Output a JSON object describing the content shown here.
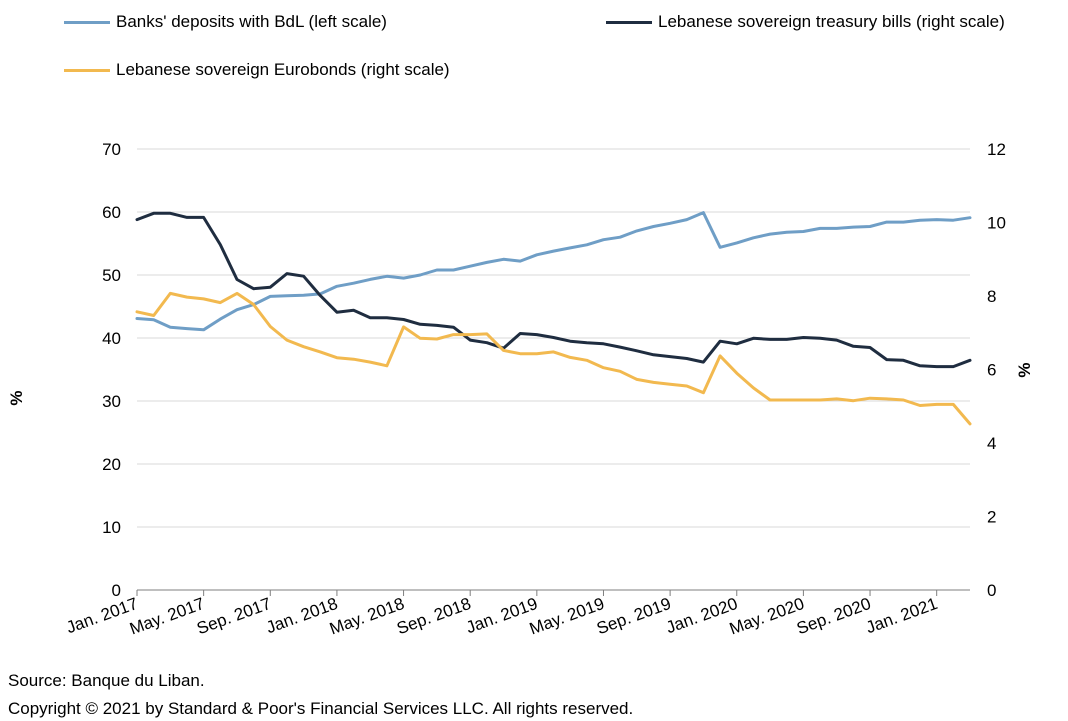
{
  "chart_data": {
    "type": "line",
    "legend_position": "top",
    "x_tick_labels": [
      "Jan. 2017",
      "May. 2017",
      "Sep. 2017",
      "Jan. 2018",
      "May. 2018",
      "Sep. 2018",
      "Jan. 2019",
      "May. 2019",
      "Sep. 2019",
      "Jan. 2020",
      "May. 2020",
      "Sep. 2020",
      "Jan. 2021"
    ],
    "x_start": "Jan. 2017",
    "x_end": "Mar. 2021",
    "ylabel_left": "%",
    "ylabel_right": "%",
    "ylim_left": [
      0,
      70
    ],
    "ylim_right": [
      0,
      12
    ],
    "yticks_left": [
      "0",
      "10",
      "20",
      "30",
      "40",
      "50",
      "60",
      "70"
    ],
    "yticks_right": [
      "0",
      "2",
      "4",
      "6",
      "8",
      "10",
      "12"
    ],
    "grid": true,
    "series": [
      {
        "name": "Banks' deposits with BdL (left scale)",
        "axis": "left",
        "color": "#6f9ec6",
        "values": [
          43.1,
          42.9,
          41.7,
          41.5,
          41.3,
          43.0,
          44.5,
          45.3,
          46.6,
          46.7,
          46.8,
          47.0,
          48.2,
          48.7,
          49.3,
          49.8,
          49.5,
          50.0,
          50.8,
          50.8,
          51.4,
          52.0,
          52.5,
          52.2,
          53.2,
          53.8,
          54.3,
          54.8,
          55.6,
          56.0,
          57.0,
          57.7,
          58.2,
          58.8,
          59.9,
          54.4,
          55.1,
          55.9,
          56.5,
          56.8,
          56.9,
          57.4,
          57.4,
          57.6,
          57.7,
          58.4,
          58.4,
          58.7,
          58.8,
          58.7,
          59.1
        ]
      },
      {
        "name": "Lebanese sovereign treasury bills (right scale)",
        "axis": "right",
        "color": "#1f2d40",
        "values": [
          10.08,
          10.25,
          10.25,
          10.14,
          10.14,
          9.4,
          8.45,
          8.2,
          8.24,
          8.61,
          8.54,
          8.01,
          7.56,
          7.61,
          7.41,
          7.41,
          7.36,
          7.23,
          7.2,
          7.15,
          6.8,
          6.73,
          6.58,
          6.98,
          6.95,
          6.87,
          6.77,
          6.73,
          6.7,
          6.61,
          6.51,
          6.4,
          6.35,
          6.3,
          6.2,
          6.77,
          6.7,
          6.85,
          6.82,
          6.82,
          6.87,
          6.85,
          6.8,
          6.63,
          6.6,
          6.27,
          6.25,
          6.1,
          6.08,
          6.08,
          6.25
        ]
      },
      {
        "name": "Lebanese sovereign Eurobonds (right scale)",
        "axis": "right",
        "color": "#f2b94f",
        "values": [
          7.57,
          7.47,
          8.07,
          7.97,
          7.92,
          7.82,
          8.07,
          7.77,
          7.17,
          6.8,
          6.62,
          6.48,
          6.32,
          6.28,
          6.2,
          6.1,
          7.16,
          6.85,
          6.83,
          6.95,
          6.95,
          6.97,
          6.52,
          6.43,
          6.43,
          6.48,
          6.33,
          6.25,
          6.05,
          5.95,
          5.73,
          5.65,
          5.6,
          5.55,
          5.37,
          6.37,
          5.9,
          5.5,
          5.17,
          5.17,
          5.17,
          5.17,
          5.2,
          5.15,
          5.22,
          5.2,
          5.17,
          5.02,
          5.05,
          5.05,
          4.52
        ]
      }
    ]
  },
  "footer": {
    "source": "Source: Banque du Liban.",
    "copyright": "Copyright © 2021 by Standard & Poor's Financial Services LLC. All rights reserved."
  }
}
